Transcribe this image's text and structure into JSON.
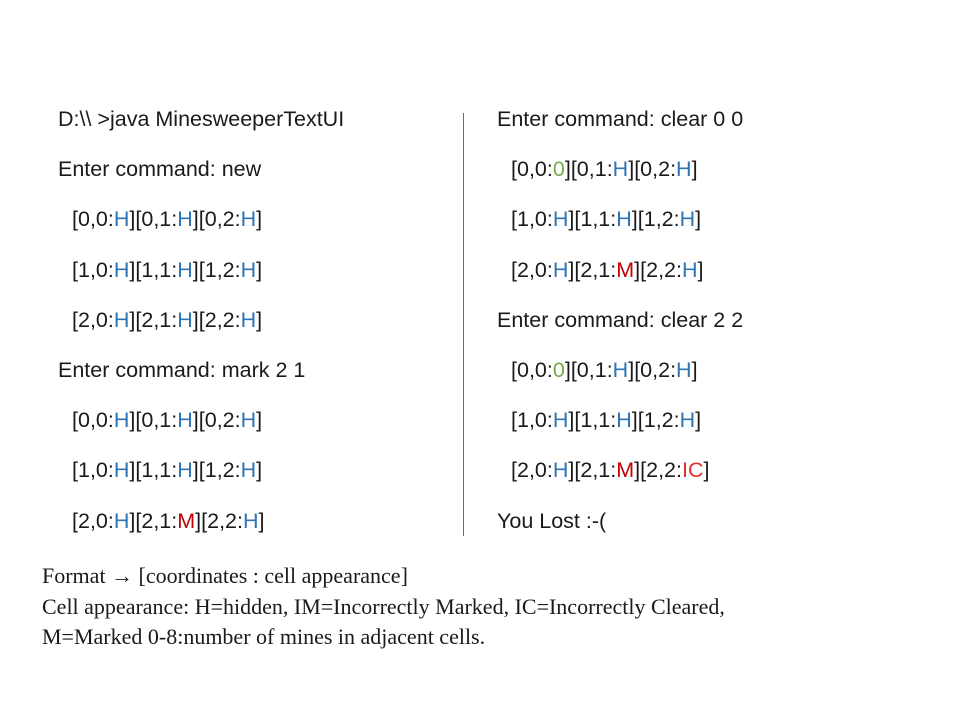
{
  "colors": {
    "text": "#1a1a1a",
    "H": "#2e75b6",
    "M": "#c00000",
    "IC": "#e0302a",
    "zero": "#70ad47",
    "divider": "#4a76b0"
  },
  "left": {
    "prompt": "D:\\\\ >java MinesweeperTextUI",
    "blocks": [
      {
        "command": "Enter command: new",
        "rows": [
          [
            {
              "coord": "0,0",
              "val": "H"
            },
            {
              "coord": "0,1",
              "val": "H"
            },
            {
              "coord": "0,2",
              "val": "H"
            }
          ],
          [
            {
              "coord": "1,0",
              "val": "H"
            },
            {
              "coord": "1,1",
              "val": "H"
            },
            {
              "coord": "1,2",
              "val": "H"
            }
          ],
          [
            {
              "coord": "2,0",
              "val": "H"
            },
            {
              "coord": "2,1",
              "val": "H"
            },
            {
              "coord": "2,2",
              "val": "H"
            }
          ]
        ]
      },
      {
        "command": "Enter command: mark 2 1",
        "rows": [
          [
            {
              "coord": "0,0",
              "val": "H"
            },
            {
              "coord": "0,1",
              "val": "H"
            },
            {
              "coord": "0,2",
              "val": "H"
            }
          ],
          [
            {
              "coord": "1,0",
              "val": "H"
            },
            {
              "coord": "1,1",
              "val": "H"
            },
            {
              "coord": "1,2",
              "val": "H"
            }
          ],
          [
            {
              "coord": "2,0",
              "val": "H"
            },
            {
              "coord": "2,1",
              "val": "M"
            },
            {
              "coord": "2,2",
              "val": "H"
            }
          ]
        ]
      }
    ]
  },
  "right": {
    "blocks": [
      {
        "command": "Enter command: clear 0 0",
        "rows": [
          [
            {
              "coord": "0,0",
              "val": "0"
            },
            {
              "coord": "0,1",
              "val": "H"
            },
            {
              "coord": "0,2",
              "val": "H"
            }
          ],
          [
            {
              "coord": "1,0",
              "val": "H"
            },
            {
              "coord": "1,1",
              "val": "H"
            },
            {
              "coord": "1,2",
              "val": "H"
            }
          ],
          [
            {
              "coord": "2,0",
              "val": "H"
            },
            {
              "coord": "2,1",
              "val": "M"
            },
            {
              "coord": "2,2",
              "val": "H"
            }
          ]
        ]
      },
      {
        "command": "Enter command: clear 2 2",
        "rows": [
          [
            {
              "coord": "0,0",
              "val": "0"
            },
            {
              "coord": "0,1",
              "val": "H"
            },
            {
              "coord": "0,2",
              "val": "H"
            }
          ],
          [
            {
              "coord": "1,0",
              "val": "H"
            },
            {
              "coord": "1,1",
              "val": "H"
            },
            {
              "coord": "1,2",
              "val": "H"
            }
          ],
          [
            {
              "coord": "2,0",
              "val": "H"
            },
            {
              "coord": "2,1",
              "val": "M"
            },
            {
              "coord": "2,2",
              "val": "IC"
            }
          ]
        ]
      }
    ],
    "result": "You Lost :-("
  },
  "footer": {
    "line1": "Format → [coordinates : cell appearance]",
    "line2": "Cell appearance: H=hidden, IM=Incorrectly Marked, IC=Incorrectly Cleared,",
    "line3": "M=Marked 0-8:number of mines in adjacent cells."
  }
}
